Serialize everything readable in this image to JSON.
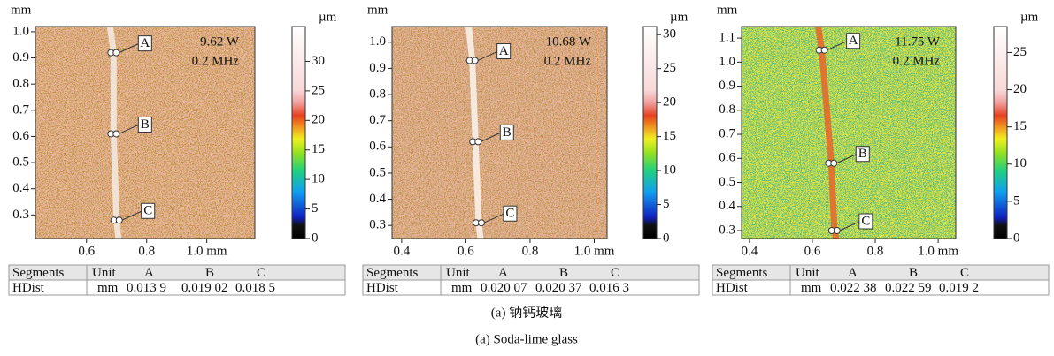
{
  "panels": [
    {
      "y_unit": "mm",
      "colorbar_unit": "µm",
      "power": "9.62 W",
      "frequency": "0.2 MHz",
      "map_color": "#eab5a5",
      "speckle_color": "#c9883a",
      "speckle2_color": "#b0c050",
      "trace_color": "#f4ece4",
      "xlim": [
        0.43,
        1.16
      ],
      "xticks": [
        0.6,
        0.8,
        {
          "value": 1.0,
          "label": "1.0 mm"
        }
      ],
      "ylim": [
        0.21,
        1.02
      ],
      "yticks": [
        {
          "value": 1.0,
          "label": "1.0"
        },
        0.9,
        0.8,
        0.7,
        0.6,
        0.5,
        0.4,
        0.3
      ],
      "colorbar_lim": [
        0,
        35.9
      ],
      "colorbar_ticks": [
        0,
        5,
        10,
        15,
        20,
        25,
        30
      ],
      "markers": [
        {
          "label": "A",
          "x": 0.69,
          "y": 0.92
        },
        {
          "label": "B",
          "x": 0.69,
          "y": 0.61
        },
        {
          "label": "C",
          "x": 0.7,
          "y": 0.28
        }
      ],
      "table": {
        "header": [
          "Segments",
          "Unit",
          "A",
          "B",
          "C"
        ],
        "row": [
          "HDist",
          "mm",
          "0.013 9",
          "0.019 02",
          "0.018 5"
        ]
      }
    },
    {
      "y_unit": "mm",
      "colorbar_unit": "µm",
      "power": "10.68 W",
      "frequency": "0.2 MHz",
      "map_color": "#e9b3a3",
      "speckle_color": "#c98a40",
      "speckle2_color": "#a8b860",
      "trace_color": "#faf4f0",
      "xlim": [
        0.37,
        1.04
      ],
      "xticks": [
        0.4,
        0.6,
        0.8,
        {
          "value": 1.0,
          "label": "1.0 mm"
        }
      ],
      "ylim": [
        0.25,
        1.06
      ],
      "yticks": [
        {
          "value": 1.0,
          "label": "1.0"
        },
        0.9,
        0.8,
        0.7,
        0.6,
        0.5,
        0.4,
        0.3
      ],
      "colorbar_lim": [
        0,
        31.2
      ],
      "colorbar_ticks": [
        0,
        5,
        10,
        15,
        20,
        25,
        30
      ],
      "markers": [
        {
          "label": "A",
          "x": 0.62,
          "y": 0.93
        },
        {
          "label": "B",
          "x": 0.63,
          "y": 0.62
        },
        {
          "label": "C",
          "x": 0.64,
          "y": 0.31
        }
      ],
      "table": {
        "header": [
          "Segments",
          "Unit",
          "A",
          "B",
          "C"
        ],
        "row": [
          "HDist",
          "mm",
          "0.020 07",
          "0.020 37",
          "0.016 3"
        ]
      }
    },
    {
      "y_unit": "mm",
      "colorbar_unit": "µm",
      "power": "11.75 W",
      "frequency": "0.2 MHz",
      "map_color": "#e4e23e",
      "speckle_color": "#58c070",
      "speckle2_color": "#3aa8c8",
      "trace_color": "#e8642a",
      "xlim": [
        0.375,
        1.056
      ],
      "xticks": [
        0.4,
        0.6,
        0.8,
        {
          "value": 1.0,
          "label": "1.0 mm"
        }
      ],
      "ylim": [
        0.267,
        1.148
      ],
      "yticks": [
        1.1,
        {
          "value": 1.0,
          "label": "1.0"
        },
        0.9,
        0.8,
        0.7,
        0.6,
        0.5,
        0.4,
        0.3
      ],
      "colorbar_lim": [
        0,
        28.5
      ],
      "colorbar_ticks": [
        0,
        5,
        10,
        15,
        20,
        25
      ],
      "markers": [
        {
          "label": "A",
          "x": 0.63,
          "y": 1.05
        },
        {
          "label": "B",
          "x": 0.66,
          "y": 0.58
        },
        {
          "label": "C",
          "x": 0.67,
          "y": 0.3
        }
      ],
      "table": {
        "header": [
          "Segments",
          "Unit",
          "A",
          "B",
          "C"
        ],
        "row": [
          "HDist",
          "mm",
          "0.022 38",
          "0.022 59",
          "0.019 2"
        ]
      }
    }
  ],
  "caption_cn": "(a) 钠钙玻璃",
  "caption_en": "(a) Soda-lime glass"
}
